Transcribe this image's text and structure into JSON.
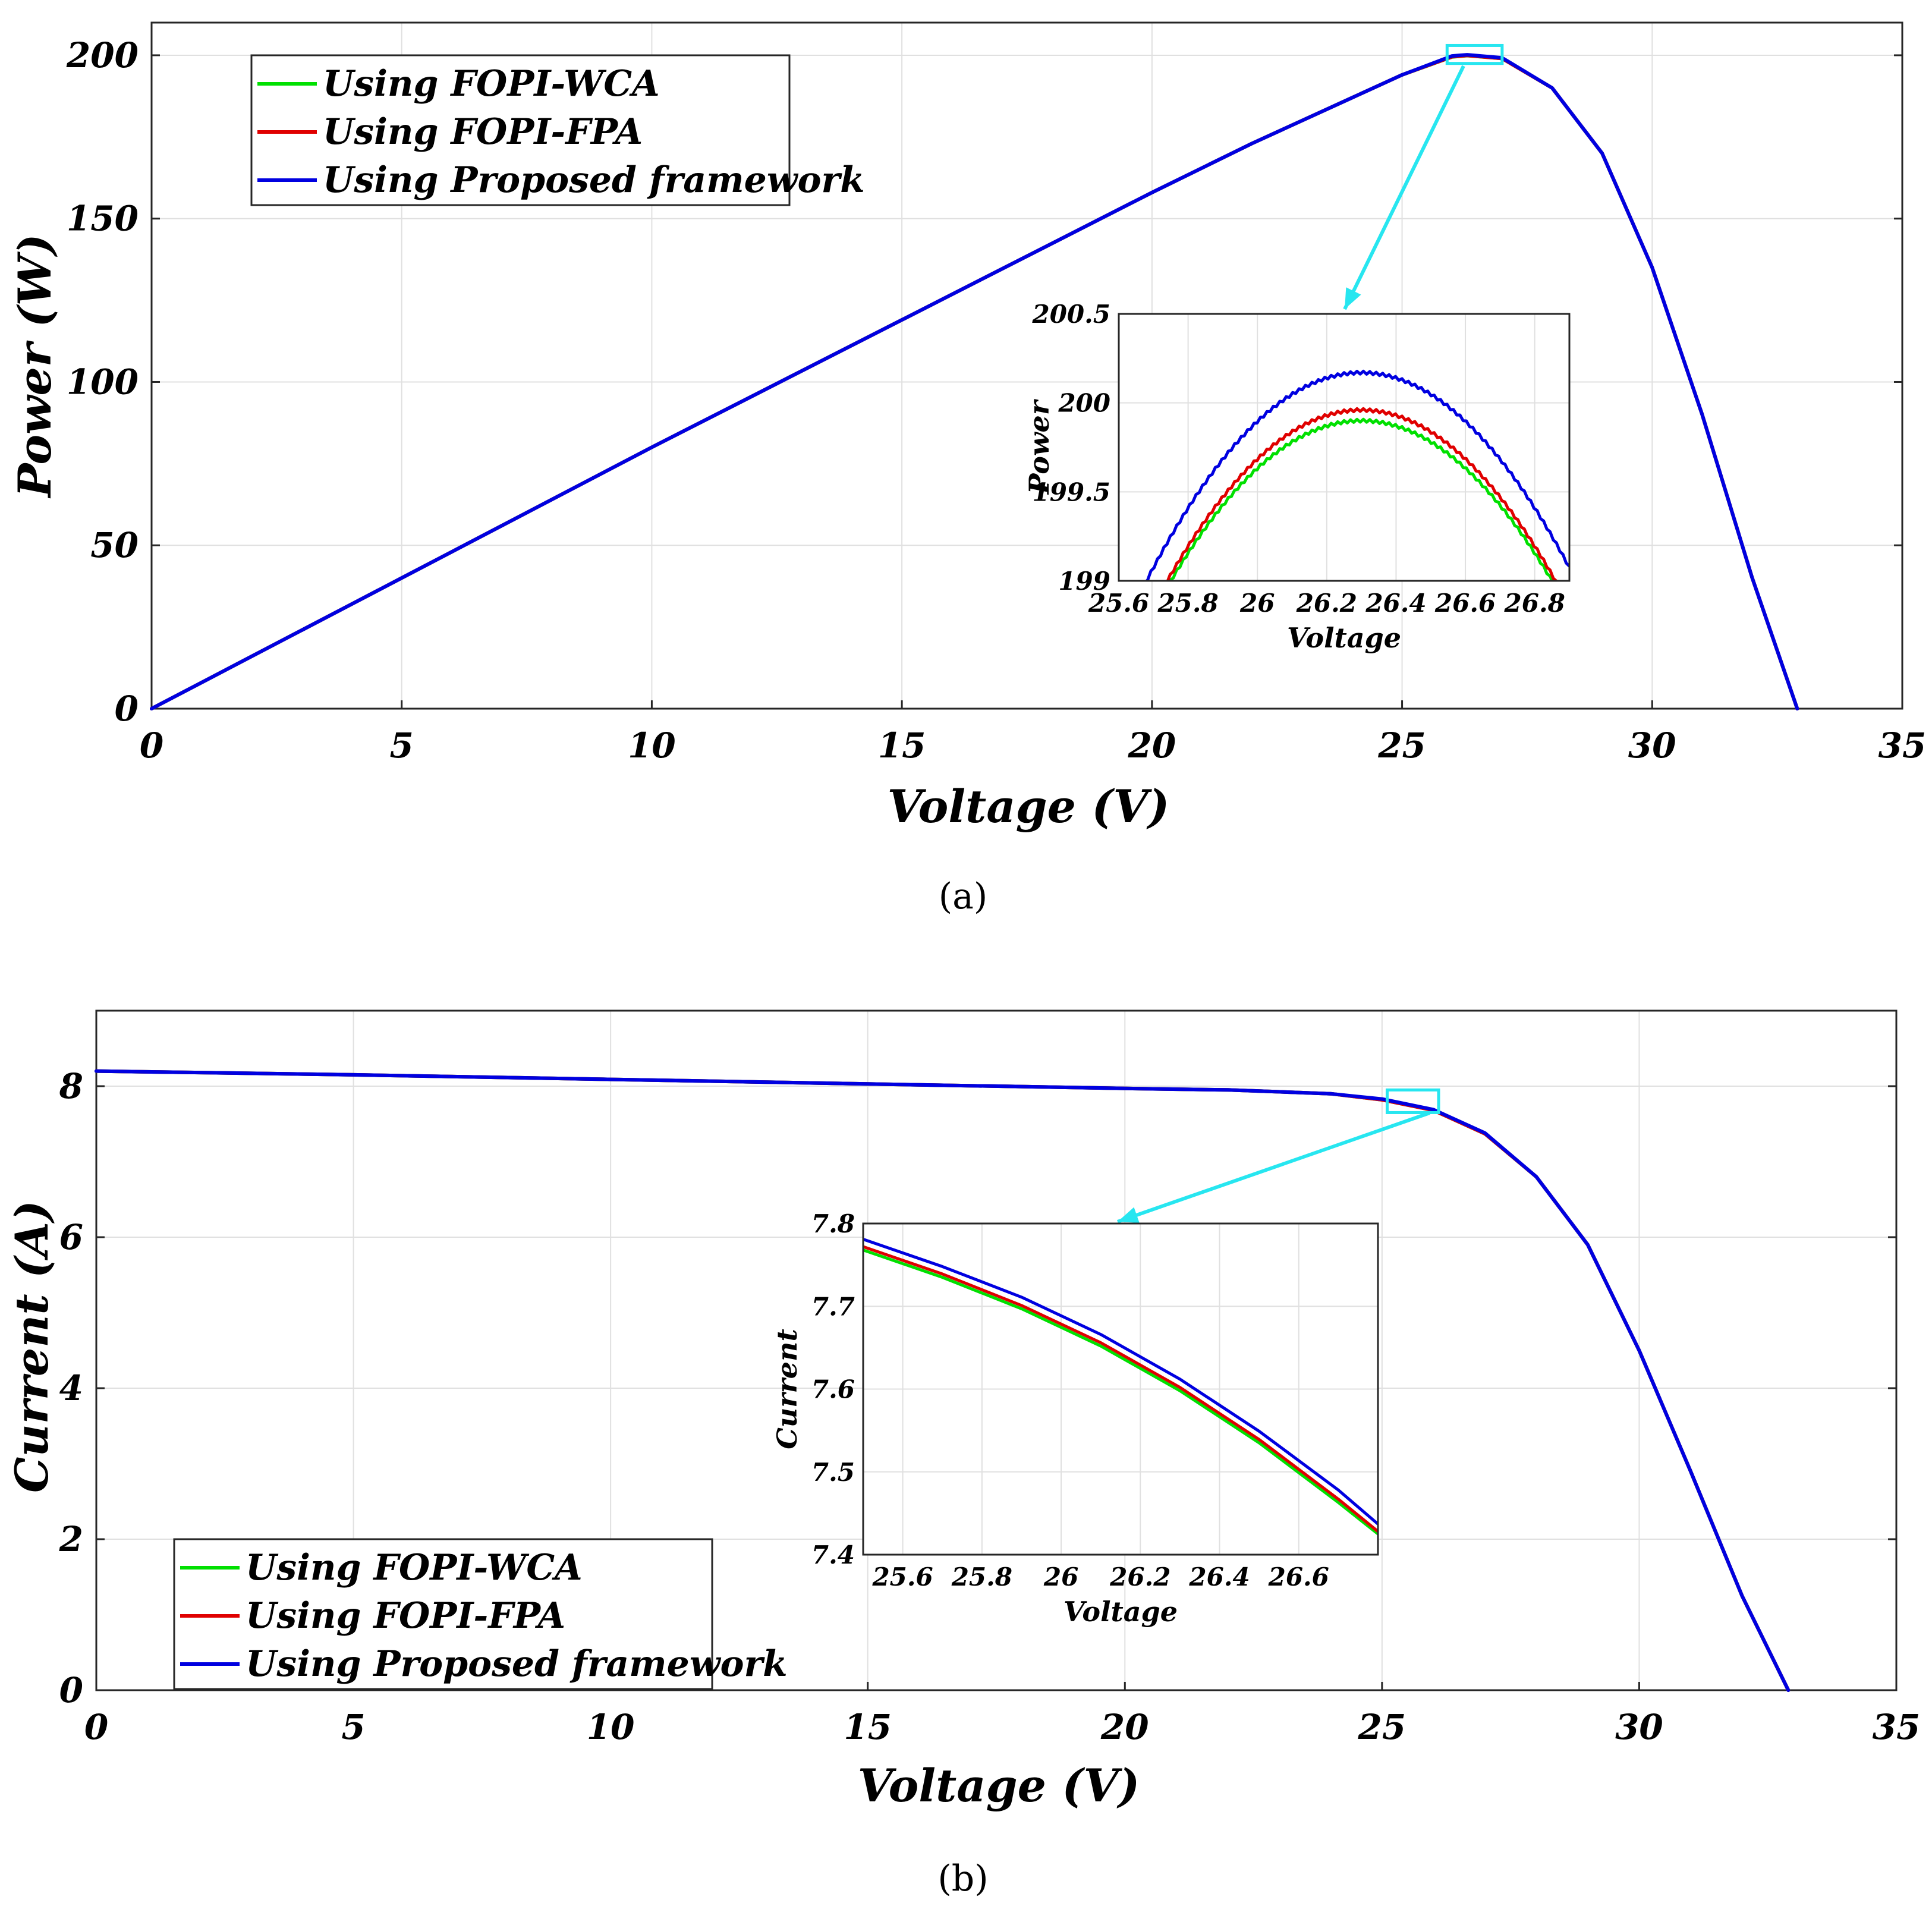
{
  "colors": {
    "wca": "#00e000",
    "fpa": "#e00000",
    "proposed": "#0000e0",
    "zoom": "#27e6f0"
  },
  "chart_data": [
    {
      "id": "a",
      "type": "line",
      "caption": "(a)",
      "xlabel": "Voltage (V)",
      "ylabel": "Power (W)",
      "xlim": [
        0,
        35
      ],
      "ylim": [
        0,
        210
      ],
      "xticks": [
        0,
        5,
        10,
        15,
        20,
        25,
        30,
        35
      ],
      "yticks": [
        0,
        50,
        100,
        150,
        200
      ],
      "grid": true,
      "legend_position": "top-left",
      "series": [
        {
          "name": "Using FOPI-WCA",
          "color_key": "wca",
          "x": [
            0,
            5,
            10,
            15,
            20,
            22,
            24,
            25,
            26,
            26.3,
            27,
            28,
            29,
            30,
            31,
            32,
            32.9
          ],
          "y": [
            0,
            40,
            80,
            119,
            158,
            173,
            187,
            194,
            199.5,
            199.9,
            199,
            190,
            170,
            135,
            90,
            40,
            0
          ]
        },
        {
          "name": "Using FOPI-FPA",
          "color_key": "fpa",
          "x": [
            0,
            5,
            10,
            15,
            20,
            22,
            24,
            25,
            26,
            26.3,
            27,
            28,
            29,
            30,
            31,
            32,
            32.9
          ],
          "y": [
            0,
            40,
            80,
            119,
            158,
            173,
            187,
            194,
            199.55,
            199.95,
            199,
            190,
            170,
            135,
            90,
            40,
            0
          ]
        },
        {
          "name": "Using Proposed framework",
          "color_key": "proposed",
          "x": [
            0,
            5,
            10,
            15,
            20,
            22,
            24,
            25,
            26,
            26.3,
            27,
            28,
            29,
            30,
            31,
            32,
            32.9
          ],
          "y": [
            0,
            40,
            80,
            119,
            158,
            173,
            187,
            194,
            199.8,
            200.15,
            199.2,
            190,
            170,
            135,
            90,
            40,
            0
          ]
        }
      ],
      "zoom_box": {
        "x": [
          25.9,
          27.0
        ],
        "y": [
          197.5,
          203
        ]
      },
      "inset": {
        "xlabel": "Voltage",
        "ylabel": "Power",
        "xlim": [
          25.6,
          26.9
        ],
        "ylim": [
          199,
          200.5
        ],
        "xticks": [
          25.6,
          25.8,
          26,
          26.2,
          26.4,
          26.6,
          26.8
        ],
        "xtick_labels": [
          "25.6",
          "25.8",
          "26",
          "26.2",
          "26.4",
          "26.6",
          "26.8"
        ],
        "yticks": [
          199,
          199.5,
          200,
          200.5
        ],
        "ytick_labels": [
          "199",
          "199.5",
          "200",
          "200.5"
        ],
        "series": [
          {
            "name": "Using FOPI-WCA",
            "color_key": "wca",
            "peak_x": 26.3,
            "peak_y": 199.9,
            "halfwidth": 0.55,
            "drop": 0.9
          },
          {
            "name": "Using FOPI-FPA",
            "color_key": "fpa",
            "peak_x": 26.3,
            "peak_y": 199.96,
            "halfwidth": 0.56,
            "drop": 0.96
          },
          {
            "name": "Using Proposed framework",
            "color_key": "proposed",
            "peak_x": 26.3,
            "peak_y": 200.17,
            "halfwidth": 0.62,
            "drop": 1.17
          }
        ]
      }
    },
    {
      "id": "b",
      "type": "line",
      "caption": "(b)",
      "xlabel": "Voltage (V)",
      "ylabel": "Current (A)",
      "xlim": [
        0,
        35
      ],
      "ylim": [
        0,
        9
      ],
      "xticks": [
        0,
        5,
        10,
        15,
        20,
        25,
        30,
        35
      ],
      "yticks": [
        0,
        2,
        4,
        6,
        8
      ],
      "grid": true,
      "legend_position": "bottom-left",
      "series": [
        {
          "name": "Using FOPI-WCA",
          "color_key": "wca",
          "x": [
            0,
            5,
            10,
            15,
            20,
            22,
            24,
            25,
            26,
            27,
            28,
            29,
            30,
            31,
            32,
            32.9
          ],
          "y": [
            8.2,
            8.15,
            8.09,
            8.03,
            7.97,
            7.95,
            7.9,
            7.82,
            7.68,
            7.37,
            6.8,
            5.9,
            4.5,
            2.9,
            1.25,
            0
          ]
        },
        {
          "name": "Using FOPI-FPA",
          "color_key": "fpa",
          "x": [
            0,
            5,
            10,
            15,
            20,
            22,
            24,
            25,
            26,
            27,
            28,
            29,
            30,
            31,
            32,
            32.9
          ],
          "y": [
            8.2,
            8.15,
            8.09,
            8.03,
            7.97,
            7.95,
            7.9,
            7.82,
            7.68,
            7.37,
            6.8,
            5.9,
            4.5,
            2.9,
            1.25,
            0
          ]
        },
        {
          "name": "Using Proposed framework",
          "color_key": "proposed",
          "x": [
            0,
            5,
            10,
            15,
            20,
            22,
            24,
            25,
            26,
            27,
            28,
            29,
            30,
            31,
            32,
            32.9
          ],
          "y": [
            8.2,
            8.15,
            8.09,
            8.03,
            7.97,
            7.95,
            7.9,
            7.83,
            7.69,
            7.38,
            6.8,
            5.9,
            4.5,
            2.9,
            1.25,
            0
          ]
        }
      ],
      "zoom_box": {
        "x": [
          25.1,
          26.1
        ],
        "y": [
          7.65,
          7.95
        ]
      },
      "inset": {
        "xlabel": "Voltage",
        "ylabel": "Current",
        "xlim": [
          25.5,
          26.8
        ],
        "ylim": [
          7.4,
          7.8
        ],
        "xticks": [
          25.6,
          25.8,
          26,
          26.2,
          26.4,
          26.6
        ],
        "xtick_labels": [
          "25.6",
          "25.8",
          "26",
          "26.2",
          "26.4",
          "26.6"
        ],
        "yticks": [
          7.4,
          7.5,
          7.6,
          7.7,
          7.8
        ],
        "ytick_labels": [
          "7.4",
          "7.5",
          "7.6",
          "7.7",
          "7.8"
        ],
        "series": [
          {
            "name": "Using FOPI-WCA",
            "color_key": "wca",
            "x": [
              25.5,
              25.7,
              25.9,
              26.1,
              26.3,
              26.5,
              26.7,
              26.8
            ],
            "y": [
              7.768,
              7.735,
              7.697,
              7.652,
              7.598,
              7.535,
              7.463,
              7.425
            ]
          },
          {
            "name": "Using FOPI-FPA",
            "color_key": "fpa",
            "x": [
              25.5,
              25.7,
              25.9,
              26.1,
              26.3,
              26.5,
              26.7,
              26.8
            ],
            "y": [
              7.772,
              7.739,
              7.701,
              7.656,
              7.602,
              7.539,
              7.467,
              7.428
            ]
          },
          {
            "name": "Using Proposed framework",
            "color_key": "proposed",
            "x": [
              25.5,
              25.7,
              25.9,
              26.1,
              26.3,
              26.5,
              26.7,
              26.8
            ],
            "y": [
              7.781,
              7.748,
              7.711,
              7.666,
              7.612,
              7.549,
              7.478,
              7.437
            ]
          }
        ]
      }
    }
  ]
}
